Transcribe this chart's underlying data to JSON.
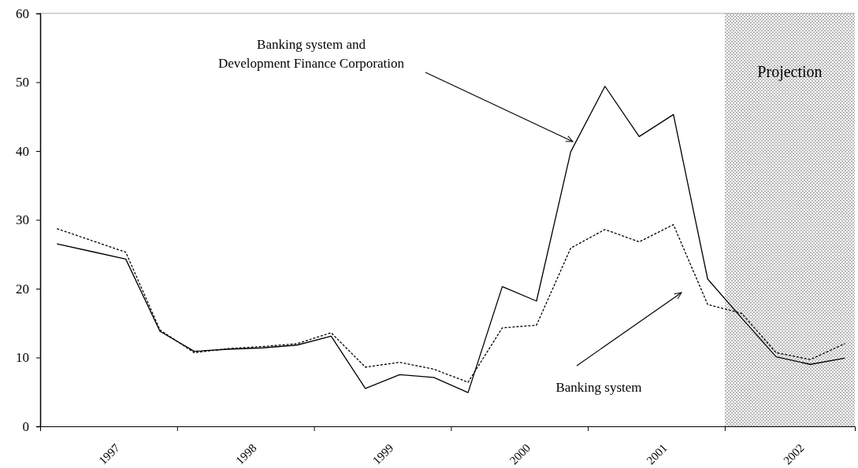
{
  "chart_data": {
    "type": "line",
    "x": [
      1997.125,
      1997.375,
      1997.625,
      1997.875,
      1998.125,
      1998.375,
      1998.625,
      1998.875,
      1999.125,
      1999.375,
      1999.625,
      1999.875,
      2000.125,
      2000.375,
      2000.625,
      2000.875,
      2001.125,
      2001.375,
      2001.625,
      2001.875,
      2002.125,
      2002.375,
      2002.625,
      2002.875
    ],
    "series": [
      {
        "color": "#000000",
        "line_style": "solid",
        "values": [
          26.5,
          25.4,
          24.3,
          13.8,
          10.9,
          11.2,
          11.4,
          11.8,
          13.1,
          5.5,
          7.5,
          7.1,
          4.9,
          20.3,
          18.2,
          39.9,
          49.4,
          42.1,
          45.3,
          21.4,
          15.7,
          10.1,
          9.0,
          9.9
        ]
      },
      {
        "color": "#000000",
        "line_style": "dotted",
        "values": [
          28.7,
          27.0,
          25.3,
          14.0,
          10.7,
          11.3,
          11.6,
          12.0,
          13.6,
          8.6,
          9.3,
          8.3,
          6.4,
          14.3,
          14.7,
          25.9,
          28.6,
          26.8,
          29.3,
          17.7,
          16.4,
          10.7,
          9.7,
          12.0
        ]
      }
    ],
    "xlim": [
      1997,
      2002.95
    ],
    "xticks": [
      {
        "value": 1997,
        "label": null
      },
      {
        "value": 1997.5,
        "label": "1997"
      },
      {
        "value": 1998,
        "label": null
      },
      {
        "value": 1998.5,
        "label": "1998"
      },
      {
        "value": 1999,
        "label": null
      },
      {
        "value": 1999.5,
        "label": "1999"
      },
      {
        "value": 2000,
        "label": null
      },
      {
        "value": 2000.5,
        "label": "2000"
      },
      {
        "value": 2001,
        "label": null
      },
      {
        "value": 2001.5,
        "label": "2001"
      },
      {
        "value": 2002,
        "label": null
      },
      {
        "value": 2002.5,
        "label": "2002"
      }
    ],
    "ylim": [
      0,
      60
    ],
    "yticks": [
      0,
      10,
      20,
      30,
      40,
      50,
      60
    ],
    "grid": false,
    "marker": "none",
    "bands": [
      {
        "axis": "x",
        "from": 2002,
        "to": 2002.95,
        "label": "Projection",
        "color": "#b8b8b8"
      }
    ],
    "annotations": [
      "Banking system and\nDevelopment Finance Corporation",
      "Banking system"
    ]
  }
}
